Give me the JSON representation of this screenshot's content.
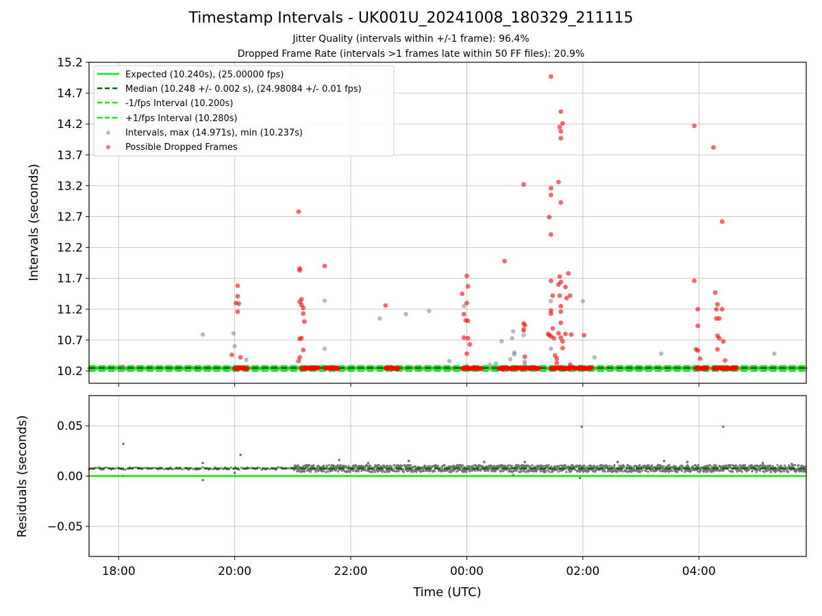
{
  "figure": {
    "title": "Timestamp Intervals - UK001U_20241008_180329_211115",
    "subtitle_1": "Jitter Quality (intervals within +/-1 frame): 96.4%",
    "subtitle_2": "Dropped Frame Rate (intervals >1 frames late within 50 FF files): 20.9%",
    "x_axis_label": "Time (UTC)"
  },
  "colors": {
    "expected": "#00ee00",
    "median": "#006400",
    "bounds": "#00ee00",
    "intervals": "#808080",
    "dropped": "#ff0000",
    "grid": "#b0b0b0"
  },
  "chart_data": [
    {
      "type": "scatter",
      "ylabel": "Intervals (seconds)",
      "xlabel": "",
      "x_ticks": [
        "18:00",
        "20:00",
        "22:00",
        "00:00",
        "02:00",
        "04:00"
      ],
      "xlim_hours": [
        17.49,
        29.85
      ],
      "ylim": [
        10.0,
        15.2
      ],
      "y_ticks": [
        "10.2",
        "10.7",
        "11.2",
        "11.7",
        "12.2",
        "12.7",
        "13.2",
        "13.7",
        "14.2",
        "14.7",
        "15.2"
      ],
      "grid": true,
      "legend_placement": "top-left",
      "legend": [
        "Expected (10.240s), (25.00000 fps)",
        "Median (10.248 +/- 0.002 s), (24.98084 +/- 0.01 fps)",
        "-1/fps Interval (10.200s)",
        "+1/fps Interval (10.280s)",
        "Intervals, max (14.971s), min (10.237s)",
        "Possible Dropped Frames"
      ],
      "lines": {
        "expected": 10.24,
        "median": 10.248,
        "minus_1fps": 10.2,
        "plus_1fps": 10.28
      },
      "series": [
        {
          "name": "Intervals, max (14.971s), min (10.237s)",
          "points": [
            [
              18.08,
              10.27
            ],
            [
              19.45,
              10.79
            ],
            [
              19.98,
              10.81
            ],
            [
              20.0,
              10.6
            ],
            [
              20.2,
              10.38
            ],
            [
              21.55,
              10.56
            ],
            [
              21.55,
              11.34
            ],
            [
              22.5,
              11.05
            ],
            [
              22.95,
              11.12
            ],
            [
              23.35,
              11.17
            ],
            [
              23.7,
              10.36
            ],
            [
              23.95,
              11.25
            ],
            [
              24.0,
              10.28
            ],
            [
              24.4,
              10.3
            ],
            [
              24.5,
              10.32
            ],
            [
              24.6,
              10.68
            ],
            [
              24.75,
              10.39
            ],
            [
              24.78,
              10.73
            ],
            [
              24.8,
              10.84
            ],
            [
              24.82,
              10.5
            ],
            [
              24.82,
              10.47
            ],
            [
              24.98,
              10.78
            ],
            [
              24.98,
              10.85
            ],
            [
              25.0,
              10.35
            ],
            [
              25.0,
              10.31
            ],
            [
              25.45,
              10.56
            ],
            [
              25.45,
              11.33
            ],
            [
              25.95,
              10.27
            ],
            [
              26.0,
              11.33
            ],
            [
              26.2,
              10.42
            ],
            [
              27.35,
              10.48
            ],
            [
              29.3,
              10.48
            ]
          ]
        },
        {
          "name": "Possible Dropped Frames",
          "clusters_at_baseline": [
            [
              20.0,
              20.22
            ],
            [
              21.15,
              21.45
            ],
            [
              21.55,
              21.78
            ],
            [
              22.6,
              22.82
            ],
            [
              23.92,
              24.25
            ],
            [
              24.55,
              25.25
            ],
            [
              25.45,
              26.15
            ],
            [
              27.95,
              28.15
            ],
            [
              28.25,
              28.65
            ]
          ],
          "points": [
            [
              19.95,
              10.46
            ],
            [
              20.02,
              11.3
            ],
            [
              20.05,
              11.58
            ],
            [
              20.05,
              11.41
            ],
            [
              20.05,
              11.16
            ],
            [
              20.07,
              11.29
            ],
            [
              20.1,
              10.42
            ],
            [
              21.1,
              12.78
            ],
            [
              21.12,
              11.86
            ],
            [
              21.12,
              11.83
            ],
            [
              21.12,
              11.32
            ],
            [
              21.15,
              11.36
            ],
            [
              21.15,
              11.27
            ],
            [
              21.18,
              11.22
            ],
            [
              21.18,
              11.13
            ],
            [
              21.1,
              10.36
            ],
            [
              21.12,
              10.42
            ],
            [
              21.12,
              10.72
            ],
            [
              21.15,
              10.73
            ],
            [
              21.18,
              10.54
            ],
            [
              21.2,
              11.0
            ],
            [
              21.55,
              11.9
            ],
            [
              22.6,
              11.26
            ],
            [
              23.92,
              11.45
            ],
            [
              23.95,
              11.12
            ],
            [
              23.98,
              11.02
            ],
            [
              23.95,
              10.74
            ],
            [
              24.0,
              11.74
            ],
            [
              24.02,
              11.57
            ],
            [
              24.0,
              11.3
            ],
            [
              24.02,
              11.01
            ],
            [
              24.02,
              10.73
            ],
            [
              24.0,
              10.48
            ],
            [
              24.05,
              10.63
            ],
            [
              24.65,
              11.98
            ],
            [
              24.98,
              13.22
            ],
            [
              24.98,
              10.97
            ],
            [
              25.0,
              10.94
            ],
            [
              25.0,
              10.43
            ],
            [
              24.98,
              10.87
            ],
            [
              25.45,
              14.97
            ],
            [
              25.42,
              12.69
            ],
            [
              25.45,
              13.16
            ],
            [
              25.45,
              13.05
            ],
            [
              25.45,
              12.41
            ],
            [
              25.45,
              11.66
            ],
            [
              25.48,
              11.42
            ],
            [
              25.45,
              11.13
            ],
            [
              25.45,
              11.18
            ],
            [
              25.48,
              10.89
            ],
            [
              25.4,
              10.8
            ],
            [
              25.42,
              10.78
            ],
            [
              25.45,
              10.76
            ],
            [
              25.5,
              10.73
            ],
            [
              25.52,
              10.45
            ],
            [
              25.55,
              10.4
            ],
            [
              25.55,
              10.33
            ],
            [
              25.58,
              13.26
            ],
            [
              25.6,
              14.15
            ],
            [
              25.62,
              14.4
            ],
            [
              25.62,
              14.08
            ],
            [
              25.62,
              13.97
            ],
            [
              25.65,
              14.21
            ],
            [
              25.62,
              12.93
            ],
            [
              25.58,
              11.6
            ],
            [
              25.6,
              11.73
            ],
            [
              25.62,
              11.64
            ],
            [
              25.6,
              11.42
            ],
            [
              25.62,
              11.25
            ],
            [
              25.62,
              11.16
            ],
            [
              25.62,
              10.98
            ],
            [
              25.58,
              10.81
            ],
            [
              25.62,
              10.74
            ],
            [
              25.65,
              10.68
            ],
            [
              25.65,
              10.57
            ],
            [
              25.7,
              11.56
            ],
            [
              25.72,
              11.38
            ],
            [
              25.7,
              10.8
            ],
            [
              25.75,
              11.78
            ],
            [
              25.78,
              11.42
            ],
            [
              25.8,
              10.79
            ],
            [
              25.78,
              10.3
            ],
            [
              26.02,
              10.78
            ],
            [
              27.92,
              14.17
            ],
            [
              27.92,
              11.66
            ],
            [
              27.98,
              11.2
            ],
            [
              27.98,
              10.93
            ],
            [
              27.95,
              10.55
            ],
            [
              27.98,
              10.53
            ],
            [
              28.02,
              10.4
            ],
            [
              28.25,
              13.82
            ],
            [
              28.28,
              11.47
            ],
            [
              28.3,
              11.2
            ],
            [
              28.3,
              11.05
            ],
            [
              28.32,
              11.28
            ],
            [
              28.35,
              11.05
            ],
            [
              28.32,
              10.77
            ],
            [
              28.35,
              10.73
            ],
            [
              28.4,
              12.62
            ],
            [
              28.4,
              11.2
            ],
            [
              28.42,
              10.68
            ],
            [
              28.45,
              10.37
            ],
            [
              28.32,
              10.55
            ]
          ]
        }
      ]
    },
    {
      "type": "scatter",
      "ylabel": "Residuals (seconds)",
      "xlabel": "Time (UTC)",
      "x_ticks": [
        "18:00",
        "20:00",
        "22:00",
        "00:00",
        "02:00",
        "04:00"
      ],
      "xlim_hours": [
        17.49,
        29.85
      ],
      "ylim": [
        -0.08,
        0.08
      ],
      "y_ticks": [
        "−0.05",
        "0.00",
        "0.05"
      ],
      "grid": true,
      "lines": {
        "zero": 0.0,
        "median": 0.0075
      },
      "series": [
        {
          "name": "Residuals",
          "typical_band": [
            0.004,
            0.011
          ],
          "dense_from_hour": 21.0,
          "outliers": [
            [
              18.08,
              0.032
            ],
            [
              18.08,
              0.0
            ],
            [
              19.45,
              0.013
            ],
            [
              19.45,
              -0.004
            ],
            [
              20.1,
              0.021
            ],
            [
              20.0,
              0.003
            ],
            [
              21.8,
              0.016
            ],
            [
              25.98,
              0.049
            ],
            [
              25.95,
              -0.002
            ],
            [
              28.42,
              0.049
            ],
            [
              23.0,
              0.015
            ],
            [
              24.3,
              0.014
            ],
            [
              25.0,
              0.014
            ],
            [
              26.6,
              0.014
            ],
            [
              27.4,
              0.015
            ],
            [
              27.8,
              0.014
            ],
            [
              29.1,
              0.013
            ],
            [
              29.6,
              0.012
            ],
            [
              22.3,
              0.013
            ],
            [
              24.8,
              0.001
            ]
          ]
        }
      ]
    }
  ]
}
